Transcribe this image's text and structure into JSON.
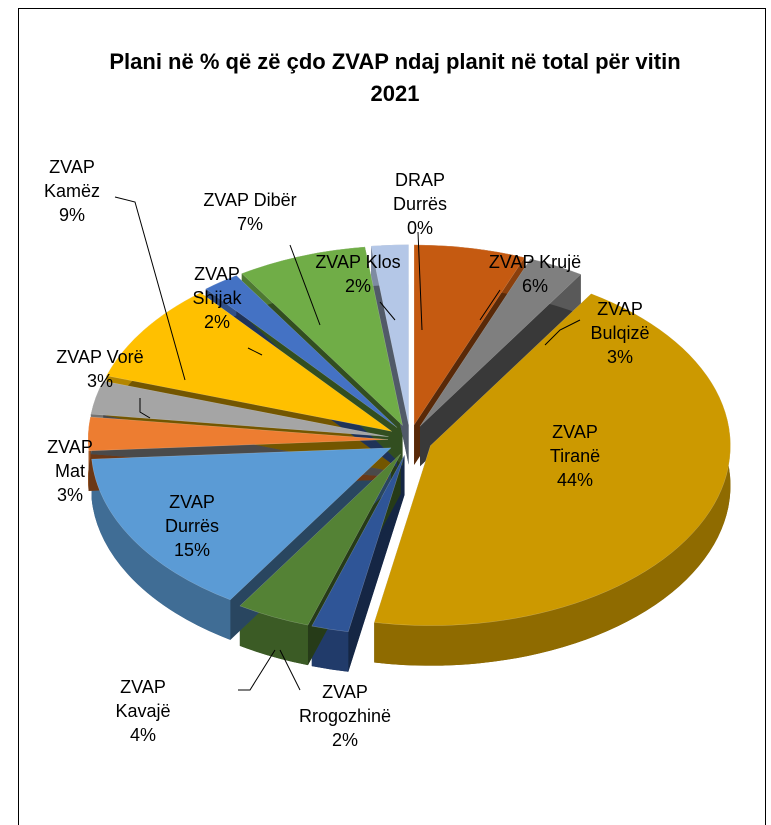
{
  "chart_data": {
    "type": "pie",
    "title": "Plani në % që zë çdo ZVAP ndaj planit në total për vitin 2021",
    "categories": [
      "DRAP Durrës",
      "ZVAP Krujë",
      "ZVAP Bulqizë",
      "ZVAP Tiranë",
      "ZVAP Rrogozhinë",
      "ZVAP Kavajë",
      "ZVAP Durrës",
      "ZVAP Mat",
      "ZVAP Vorë",
      "ZVAP Kamëz",
      "ZVAP Shijak",
      "ZVAP Dibër",
      "ZVAP Klos"
    ],
    "values": [
      0,
      6,
      3,
      44,
      2,
      4,
      15,
      3,
      3,
      9,
      2,
      7,
      2
    ],
    "value_labels": [
      "0%",
      "6%",
      "3%",
      "44%",
      "2%",
      "4%",
      "15%",
      "3%",
      "3%",
      "9%",
      "2%",
      "7%",
      "2%"
    ],
    "colors": [
      "#5b9bd5",
      "#c55a11",
      "#7f7f7f",
      "#cc9900",
      "#2f5597",
      "#548235",
      "#5b9bd5",
      "#ed7d31",
      "#a5a5a5",
      "#ffc000",
      "#4472c4",
      "#70ad47",
      "#b4c7e7"
    ]
  }
}
